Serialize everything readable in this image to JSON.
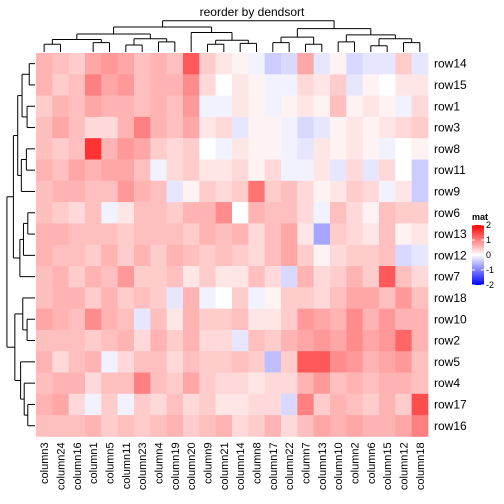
{
  "chart_data": {
    "type": "heatmap",
    "title": "reorder by dendsort",
    "rows": [
      "row14",
      "row15",
      "row1",
      "row3",
      "row8",
      "row11",
      "row9",
      "row6",
      "row13",
      "row12",
      "row7",
      "row18",
      "row10",
      "row2",
      "row5",
      "row4",
      "row17",
      "row16"
    ],
    "columns": [
      "column3",
      "column24",
      "column16",
      "column1",
      "column5",
      "column11",
      "column23",
      "column4",
      "column19",
      "column20",
      "column9",
      "column21",
      "column14",
      "column8",
      "column17",
      "column22",
      "column7",
      "column13",
      "column10",
      "column2",
      "column6",
      "column15",
      "column12",
      "column18"
    ],
    "values": [
      [
        0.6,
        0.5,
        0.4,
        0.7,
        0.8,
        0.7,
        0.5,
        0.6,
        0.5,
        1.3,
        0.4,
        0.2,
        0.1,
        -0.1,
        -0.4,
        -0.3,
        0.7,
        -0.2,
        0.1,
        -0.3,
        -0.2,
        -0.2,
        0.4,
        -0.2
      ],
      [
        0.6,
        0.4,
        0.5,
        1.0,
        0.7,
        0.8,
        0.5,
        0.6,
        0.6,
        0.9,
        0.3,
        0.0,
        0.2,
        0.1,
        -0.1,
        -0.1,
        0.3,
        0.2,
        0.4,
        -0.2,
        0.1,
        0.0,
        0.2,
        0.2
      ],
      [
        0.4,
        0.6,
        0.5,
        0.7,
        0.6,
        0.6,
        0.5,
        0.6,
        0.5,
        0.8,
        -0.1,
        -0.1,
        0.2,
        0.1,
        -0.1,
        0.1,
        0.2,
        0.1,
        0.5,
        0.1,
        0.2,
        0.1,
        -0.1,
        0.3
      ],
      [
        0.5,
        0.7,
        0.5,
        0.3,
        0.3,
        0.6,
        1.0,
        0.6,
        0.5,
        0.7,
        0.2,
        0.3,
        -0.2,
        0.1,
        0.1,
        -0.1,
        -0.3,
        -0.2,
        0.1,
        0.2,
        0.1,
        0.2,
        0.3,
        0.4
      ],
      [
        0.5,
        0.4,
        0.5,
        1.6,
        0.6,
        0.8,
        0.7,
        0.4,
        0.3,
        0.4,
        0.0,
        -0.1,
        0.2,
        0.1,
        0.1,
        -0.1,
        -0.2,
        0.2,
        0.1,
        0.2,
        0.1,
        -0.1,
        0.0,
        0.1
      ],
      [
        0.6,
        0.5,
        0.7,
        0.6,
        0.7,
        0.7,
        0.5,
        -0.1,
        0.3,
        0.4,
        0.2,
        0.2,
        0.3,
        0.1,
        0.3,
        -0.1,
        -0.1,
        0.2,
        -0.2,
        0.3,
        -0.2,
        0.3,
        0.0,
        -0.4
      ],
      [
        0.5,
        0.6,
        0.6,
        0.5,
        0.5,
        0.8,
        0.6,
        0.5,
        -0.2,
        0.1,
        0.4,
        0.3,
        0.4,
        1.1,
        0.4,
        0.5,
        0.3,
        0.1,
        0.2,
        0.4,
        0.3,
        -0.1,
        0.2,
        -0.4
      ],
      [
        0.5,
        0.4,
        0.3,
        0.5,
        -0.1,
        0.2,
        0.5,
        0.5,
        0.4,
        0.6,
        0.6,
        0.9,
        0.0,
        0.6,
        0.5,
        0.5,
        0.3,
        -0.1,
        0.5,
        0.3,
        0.1,
        0.5,
        0.4,
        0.4
      ],
      [
        0.6,
        0.6,
        0.5,
        0.5,
        0.5,
        0.4,
        0.5,
        0.5,
        0.5,
        0.4,
        0.6,
        0.5,
        0.6,
        0.3,
        0.5,
        0.7,
        0.2,
        -0.7,
        0.4,
        0.3,
        0.2,
        0.5,
        0.1,
        0.2
      ],
      [
        0.6,
        0.5,
        0.5,
        0.4,
        0.6,
        0.4,
        0.6,
        0.4,
        0.6,
        0.5,
        0.4,
        0.5,
        0.4,
        0.3,
        0.5,
        0.7,
        0.4,
        0.1,
        0.3,
        0.4,
        0.4,
        0.5,
        -0.3,
        -0.2
      ],
      [
        0.5,
        0.6,
        0.4,
        0.6,
        0.5,
        0.8,
        0.4,
        0.4,
        0.5,
        0.2,
        0.4,
        0.2,
        0.2,
        0.5,
        0.3,
        -0.3,
        0.6,
        0.3,
        0.4,
        0.6,
        0.4,
        1.3,
        0.5,
        0.3
      ],
      [
        0.5,
        0.6,
        0.6,
        0.4,
        0.6,
        0.4,
        0.5,
        0.4,
        -0.2,
        0.6,
        -0.1,
        0.0,
        0.4,
        -0.1,
        0.1,
        0.4,
        0.4,
        0.3,
        0.5,
        0.7,
        0.7,
        0.5,
        0.8,
        0.5
      ],
      [
        0.7,
        0.6,
        0.5,
        0.9,
        0.6,
        0.5,
        -0.2,
        0.5,
        0.2,
        0.6,
        0.4,
        0.4,
        0.5,
        0.2,
        0.2,
        0.4,
        0.8,
        0.7,
        0.6,
        0.9,
        0.6,
        0.8,
        0.6,
        0.6
      ],
      [
        0.5,
        0.5,
        0.5,
        0.4,
        0.5,
        0.6,
        0.3,
        0.6,
        0.4,
        0.6,
        0.3,
        0.3,
        -0.2,
        0.5,
        0.4,
        0.6,
        0.7,
        0.8,
        0.7,
        0.9,
        0.7,
        0.8,
        1.2,
        0.6
      ],
      [
        0.6,
        0.3,
        0.5,
        0.6,
        -0.1,
        0.3,
        0.5,
        0.5,
        0.3,
        0.5,
        0.4,
        0.4,
        0.5,
        0.4,
        -0.5,
        0.4,
        1.3,
        1.3,
        0.9,
        0.8,
        0.6,
        0.7,
        0.8,
        0.5
      ],
      [
        0.5,
        0.6,
        0.6,
        0.3,
        0.5,
        0.5,
        1.0,
        0.5,
        0.4,
        0.7,
        0.4,
        0.3,
        0.3,
        0.2,
        0.3,
        0.3,
        0.6,
        0.8,
        0.5,
        0.6,
        0.5,
        0.6,
        0.6,
        0.5
      ],
      [
        0.6,
        0.7,
        0.3,
        -0.1,
        0.4,
        -0.1,
        0.4,
        0.3,
        0.5,
        0.3,
        0.4,
        0.2,
        0.2,
        0.3,
        0.3,
        -0.3,
        1.0,
        0.4,
        0.6,
        0.5,
        0.4,
        0.6,
        0.4,
        1.4
      ],
      [
        0.5,
        0.5,
        0.5,
        0.6,
        0.4,
        0.5,
        0.4,
        0.5,
        0.6,
        0.4,
        0.5,
        0.6,
        0.3,
        0.4,
        0.6,
        0.3,
        0.5,
        0.7,
        0.6,
        0.7,
        0.6,
        0.6,
        0.7,
        1.0
      ]
    ],
    "legend": {
      "title": "mat",
      "ticks": [
        2,
        1,
        0,
        -1,
        -2
      ],
      "colors": {
        "high": "#ff0000",
        "mid": "#ffffff",
        "low": "#0000ff"
      },
      "range": [
        -2,
        2
      ],
      "placement": "right"
    },
    "row_dendrogram": "left",
    "column_dendrogram": "top"
  }
}
